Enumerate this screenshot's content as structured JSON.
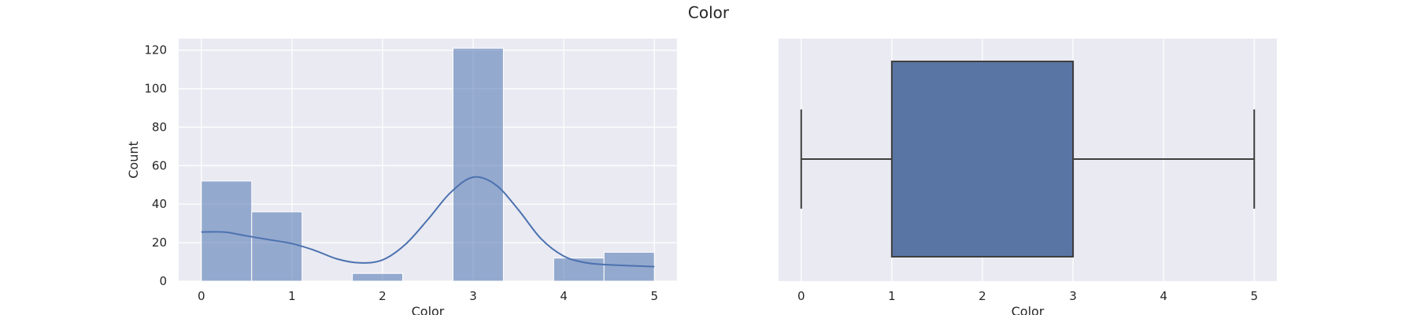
{
  "figure": {
    "title": "Color"
  },
  "chart_data": [
    {
      "type": "bar",
      "subtype": "histogram",
      "xlabel": "Color",
      "ylabel": "Count",
      "xlim": [
        -0.25,
        5.25
      ],
      "ylim": [
        0,
        126
      ],
      "xticks": [
        0,
        1,
        2,
        3,
        4,
        5
      ],
      "yticks": [
        0,
        20,
        40,
        60,
        80,
        100,
        120
      ],
      "grid": true,
      "bar_color": "#4c72b0",
      "bar_opacity": 0.55,
      "bins": [
        {
          "start": 0.0,
          "end": 0.5556,
          "count": 52
        },
        {
          "start": 0.5556,
          "end": 1.1111,
          "count": 36
        },
        {
          "start": 1.1111,
          "end": 1.6667,
          "count": 0
        },
        {
          "start": 1.6667,
          "end": 2.2222,
          "count": 4
        },
        {
          "start": 2.2222,
          "end": 2.7778,
          "count": 0
        },
        {
          "start": 2.7778,
          "end": 3.3333,
          "count": 121
        },
        {
          "start": 3.3333,
          "end": 3.8889,
          "count": 0
        },
        {
          "start": 3.8889,
          "end": 4.4444,
          "count": 12
        },
        {
          "start": 4.4444,
          "end": 5.0,
          "count": 15
        }
      ],
      "kde": {
        "color": "#4c72b0",
        "x": [
          0,
          0.25,
          0.5,
          0.75,
          1,
          1.25,
          1.5,
          1.75,
          2,
          2.25,
          2.5,
          2.75,
          3,
          3.25,
          3.5,
          3.75,
          4,
          4.25,
          4.5,
          4.75,
          5
        ],
        "y": [
          25.5,
          25.5,
          23.5,
          21.5,
          19.5,
          16,
          11.5,
          9.5,
          11,
          19,
          32,
          46,
          54,
          50,
          37,
          22,
          13,
          9.5,
          8.5,
          8,
          7.5
        ]
      }
    },
    {
      "type": "box",
      "xlabel": "Color",
      "xlim": [
        -0.25,
        5.25
      ],
      "xticks": [
        0,
        1,
        2,
        3,
        4,
        5
      ],
      "grid": true,
      "box_color": "#5975a4",
      "line_color": "#3f3f3f",
      "whisker_low": 0,
      "q1": 1,
      "median": 3,
      "q3": 3,
      "whisker_high": 5
    }
  ]
}
